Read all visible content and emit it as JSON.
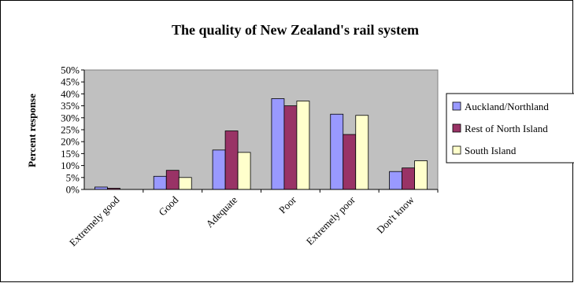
{
  "chart_data": {
    "type": "bar",
    "title": "The quality of New Zealand's rail system",
    "xlabel": "",
    "ylabel": "Percent response",
    "ylim": [
      0,
      50
    ],
    "yticks": [
      "0%",
      "5%",
      "10%",
      "15%",
      "20%",
      "25%",
      "30%",
      "35%",
      "40%",
      "45%",
      "50%"
    ],
    "grid": false,
    "legend_position": "right",
    "plot_background": "#c0c0c0",
    "categories": [
      "Extremely good",
      "Good",
      "Adequate",
      "Poor",
      "Extremely poor",
      "Don't know"
    ],
    "series": [
      {
        "name": "Auckland/Northland",
        "color": "#9999ff",
        "values": [
          1,
          5.5,
          16.5,
          38,
          31.5,
          7.5
        ]
      },
      {
        "name": "Rest of North Island",
        "color": "#993366",
        "values": [
          0.5,
          8,
          24.5,
          35,
          23,
          9
        ]
      },
      {
        "name": "South Island",
        "color": "#ffffcc",
        "values": [
          0,
          5,
          15.5,
          37,
          31,
          12
        ]
      }
    ]
  }
}
